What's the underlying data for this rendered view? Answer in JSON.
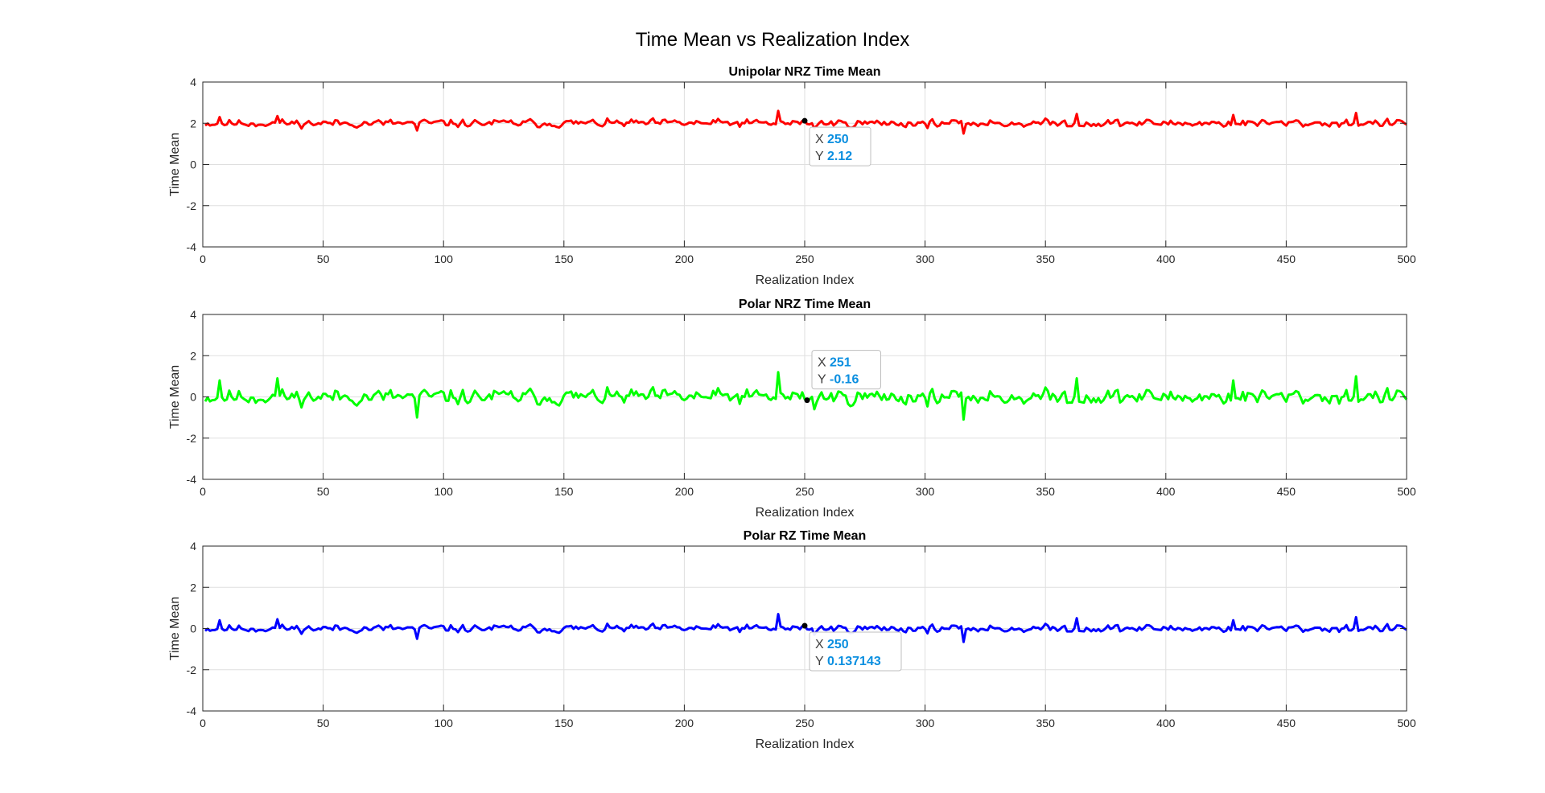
{
  "figure": {
    "title": "Time Mean vs Realization Index"
  },
  "chart_data": [
    {
      "type": "line",
      "title": "Unipolar NRZ Time Mean",
      "xlabel": "Realization Index",
      "ylabel": "Time Mean",
      "xlim": [
        0,
        500
      ],
      "ylim": [
        -4,
        4
      ],
      "xticks": [
        "0",
        "50",
        "100",
        "150",
        "200",
        "250",
        "300",
        "350",
        "400",
        "450",
        "500"
      ],
      "yticks": [
        "-4",
        "-2",
        "0",
        "2",
        "4"
      ],
      "grid": true,
      "series": [
        {
          "color": "#ff0000",
          "n_points": 500,
          "baseline": 2.0,
          "amplitude": 0.2,
          "seed": 11,
          "spikes": [
            [
              6,
              2.3
            ],
            [
              30,
              2.35
            ],
            [
              88,
              1.65
            ],
            [
              238,
              2.6
            ],
            [
              253,
              1.75
            ],
            [
              315,
              1.5
            ],
            [
              362,
              2.45
            ],
            [
              427,
              2.4
            ],
            [
              478,
              2.5
            ]
          ]
        }
      ],
      "datatip": {
        "x_label": "X",
        "x_value": "250",
        "y_label": "Y",
        "y_value": "2.12",
        "x": 250,
        "y": 2.12
      }
    },
    {
      "type": "line",
      "title": "Polar NRZ Time Mean",
      "xlabel": "Realization Index",
      "ylabel": "Time Mean",
      "xlim": [
        0,
        500
      ],
      "ylim": [
        -4,
        4
      ],
      "xticks": [
        "0",
        "50",
        "100",
        "150",
        "200",
        "250",
        "300",
        "350",
        "400",
        "450",
        "500"
      ],
      "yticks": [
        "-4",
        "-2",
        "0",
        "2",
        "4"
      ],
      "grid": true,
      "series": [
        {
          "color": "#00ff00",
          "n_points": 500,
          "baseline": 0.0,
          "amplitude": 0.4,
          "seed": 11,
          "spikes": [
            [
              6,
              0.8
            ],
            [
              30,
              0.9
            ],
            [
              88,
              -1.0
            ],
            [
              238,
              1.2
            ],
            [
              253,
              -0.6
            ],
            [
              315,
              -1.1
            ],
            [
              362,
              0.9
            ],
            [
              427,
              0.8
            ],
            [
              478,
              1.0
            ]
          ]
        }
      ],
      "datatip": {
        "x_label": "X",
        "x_value": "251",
        "y_label": "Y",
        "y_value": "-0.16",
        "x": 251,
        "y": -0.16
      }
    },
    {
      "type": "line",
      "title": "Polar RZ Time Mean",
      "xlabel": "Realization Index",
      "ylabel": "Time Mean",
      "xlim": [
        0,
        500
      ],
      "ylim": [
        -4,
        4
      ],
      "xticks": [
        "0",
        "50",
        "100",
        "150",
        "200",
        "250",
        "300",
        "350",
        "400",
        "450",
        "500"
      ],
      "yticks": [
        "-4",
        "-2",
        "0",
        "2",
        "4"
      ],
      "grid": true,
      "series": [
        {
          "color": "#0000ff",
          "n_points": 500,
          "baseline": 0.0,
          "amplitude": 0.2,
          "seed": 11,
          "spikes": [
            [
              6,
              0.4
            ],
            [
              30,
              0.45
            ],
            [
              88,
              -0.5
            ],
            [
              238,
              0.7
            ],
            [
              253,
              -0.3
            ],
            [
              315,
              -0.65
            ],
            [
              362,
              0.5
            ],
            [
              427,
              0.4
            ],
            [
              478,
              0.55
            ]
          ]
        }
      ],
      "datatip": {
        "x_label": "X",
        "x_value": "250",
        "y_label": "Y",
        "y_value": "0.137143",
        "x": 250,
        "y": 0.137143
      }
    }
  ]
}
